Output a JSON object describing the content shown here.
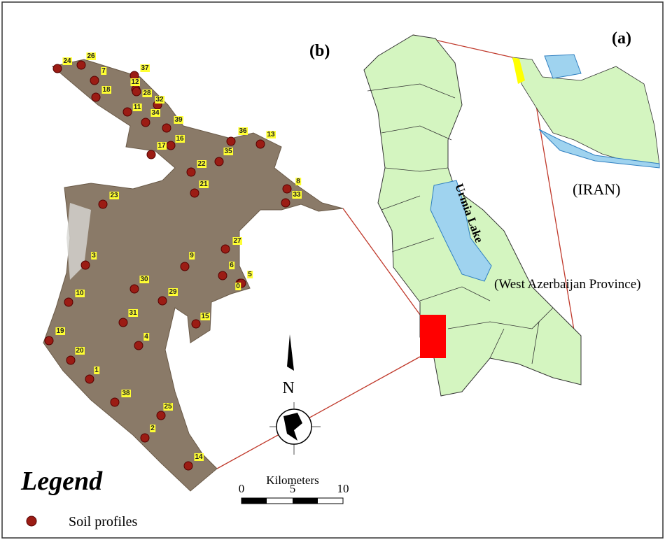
{
  "panels": {
    "a": "(a)",
    "b": "(b)"
  },
  "labels": {
    "iran": "(IRAN)",
    "lake": "Urmia Lake",
    "province": "(West Azerbaijan Province)"
  },
  "north": "N",
  "scale": {
    "title": "Kilometers",
    "ticks": [
      "0",
      "5",
      "10"
    ]
  },
  "legend": {
    "title": "Legend",
    "items": [
      "Soil profiles"
    ]
  },
  "points": [
    {
      "label": "24"
    },
    {
      "label": "26"
    },
    {
      "label": "7"
    },
    {
      "label": "18"
    },
    {
      "label": "37"
    },
    {
      "label": "12"
    },
    {
      "label": "28"
    },
    {
      "label": "32"
    },
    {
      "label": "11"
    },
    {
      "label": "34"
    },
    {
      "label": "39"
    },
    {
      "label": "16"
    },
    {
      "label": "17"
    },
    {
      "label": "36"
    },
    {
      "label": "13"
    },
    {
      "label": "35"
    },
    {
      "label": "22"
    },
    {
      "label": "8"
    },
    {
      "label": "33"
    },
    {
      "label": "21"
    },
    {
      "label": "23"
    },
    {
      "label": "27"
    },
    {
      "label": "9"
    },
    {
      "label": "3"
    },
    {
      "label": "6"
    },
    {
      "label": "5"
    },
    {
      "label": "0"
    },
    {
      "label": "30"
    },
    {
      "label": "29"
    },
    {
      "label": "10"
    },
    {
      "label": "31"
    },
    {
      "label": "15"
    },
    {
      "label": "4"
    },
    {
      "label": "19"
    },
    {
      "label": "20"
    },
    {
      "label": "1"
    },
    {
      "label": "38"
    },
    {
      "label": "25"
    },
    {
      "label": "2"
    },
    {
      "label": "14"
    }
  ]
}
